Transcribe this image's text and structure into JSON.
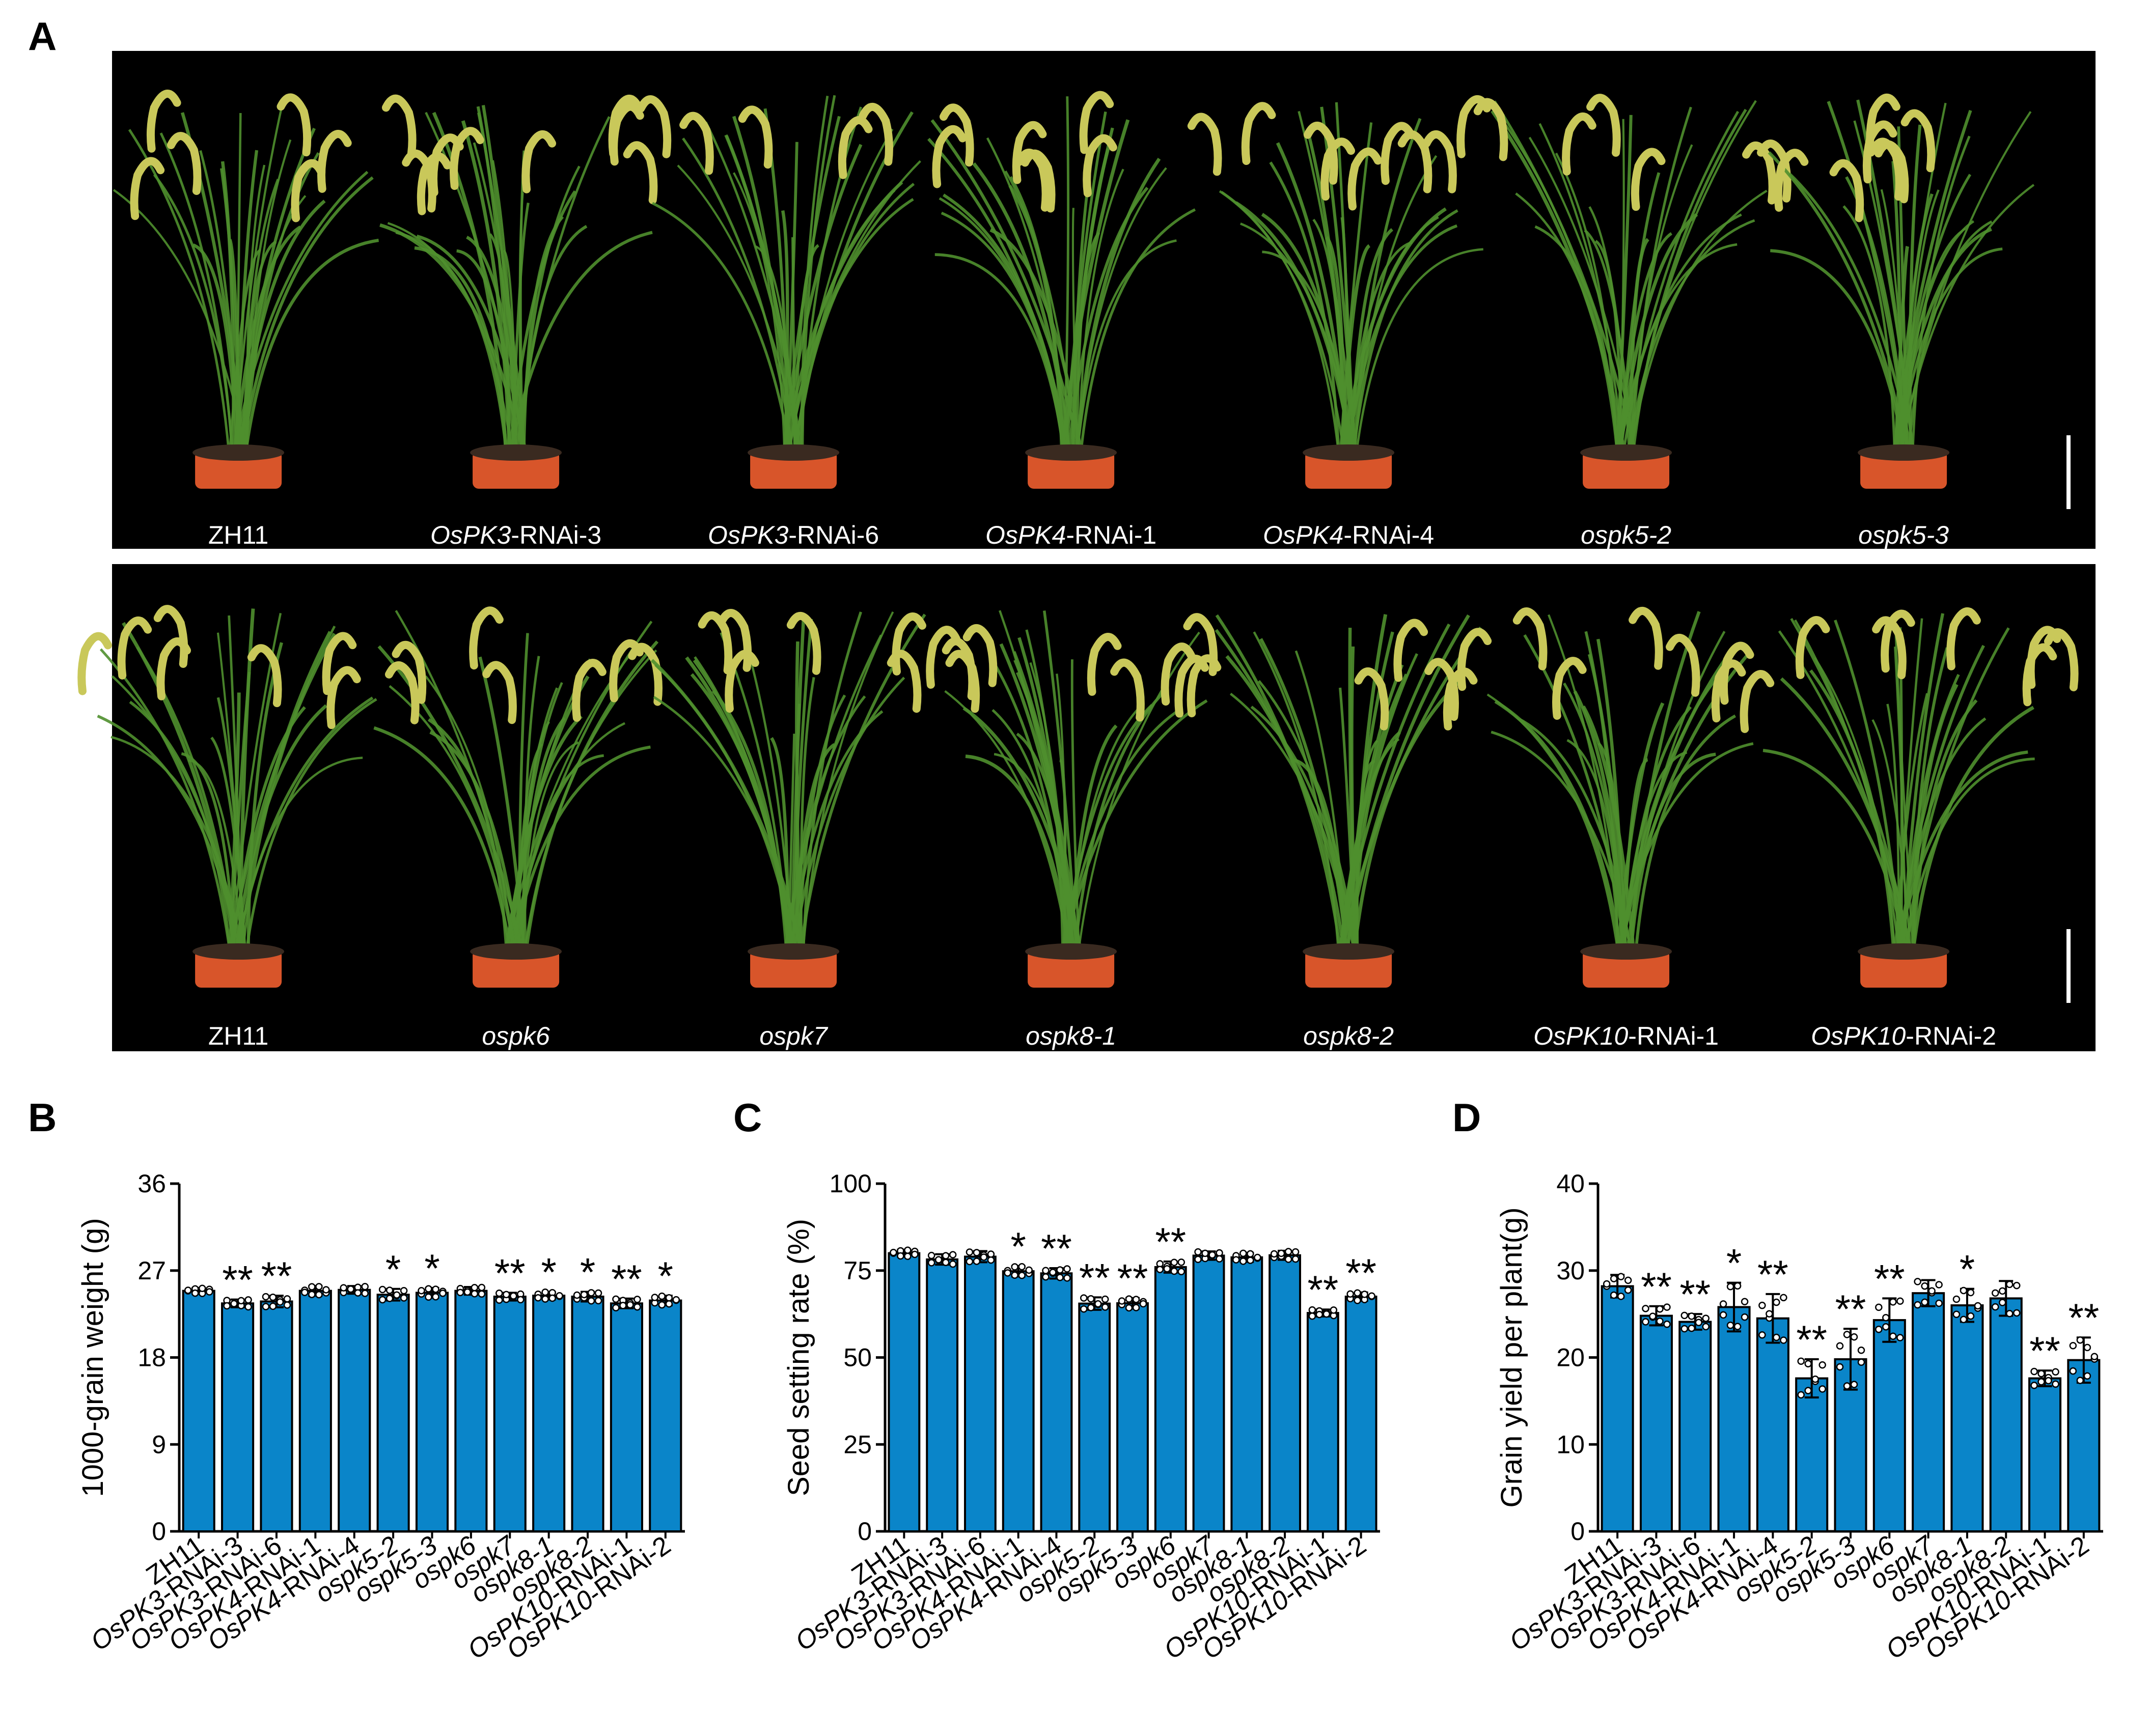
{
  "panel_letters": [
    "A",
    "B",
    "C",
    "D"
  ],
  "photos": {
    "row1_labels": [
      {
        "gene": "",
        "suffix": "ZH11"
      },
      {
        "gene": "OsPK3",
        "suffix": "-RNAi-3"
      },
      {
        "gene": "OsPK3",
        "suffix": "-RNAi-6"
      },
      {
        "gene": "OsPK4",
        "suffix": "-RNAi-1"
      },
      {
        "gene": "OsPK4",
        "suffix": "-RNAi-4"
      },
      {
        "gene": "ospk5-2",
        "suffix": ""
      },
      {
        "gene": "ospk5-3",
        "suffix": ""
      }
    ],
    "row2_labels": [
      {
        "gene": "",
        "suffix": "ZH11"
      },
      {
        "gene": "ospk6",
        "suffix": ""
      },
      {
        "gene": "ospk7",
        "suffix": ""
      },
      {
        "gene": "ospk8-1",
        "suffix": ""
      },
      {
        "gene": "ospk8-2",
        "suffix": ""
      },
      {
        "gene": "OsPK10",
        "suffix": "-RNAi-1"
      },
      {
        "gene": "OsPK10",
        "suffix": "-RNAi-2"
      }
    ]
  },
  "colors": {
    "bar_fill": "#0a85c9",
    "bar_stroke": "#000000",
    "photo_bg": "#000000",
    "leaf": "#4f8f2e",
    "panicle": "#c9c85a",
    "pot": "#d8552a",
    "soil": "#3a2a20"
  },
  "categories": [
    {
      "gene": "",
      "suffix": "ZH11"
    },
    {
      "gene": "OsPK3",
      "suffix": "-RNAi-3"
    },
    {
      "gene": "OsPK3",
      "suffix": "-RNAi-6"
    },
    {
      "gene": "OsPK4",
      "suffix": "-RNAi-1"
    },
    {
      "gene": "OsPK4",
      "suffix": "-RNAi-4"
    },
    {
      "gene": "ospk5-2",
      "suffix": ""
    },
    {
      "gene": "ospk5-3",
      "suffix": ""
    },
    {
      "gene": "ospk6",
      "suffix": ""
    },
    {
      "gene": "ospk7",
      "suffix": ""
    },
    {
      "gene": "ospk8-1",
      "suffix": ""
    },
    {
      "gene": "ospk8-2",
      "suffix": ""
    },
    {
      "gene": "OsPK10",
      "suffix": "-RNAi-1"
    },
    {
      "gene": "OsPK10",
      "suffix": "-RNAi-2"
    }
  ],
  "chart_data": [
    {
      "panel": "B",
      "type": "bar",
      "ylabel": "1000-grain weight (g)",
      "ylim": [
        0,
        36
      ],
      "yticks": [
        "0",
        "9",
        "18",
        "27",
        "36"
      ],
      "values": [
        24.9,
        23.6,
        23.8,
        24.9,
        25.0,
        24.5,
        24.7,
        24.9,
        24.3,
        24.4,
        24.3,
        23.6,
        23.9
      ],
      "errors": [
        0.3,
        0.4,
        0.6,
        0.5,
        0.4,
        0.6,
        0.5,
        0.4,
        0.4,
        0.4,
        0.5,
        0.5,
        0.5
      ],
      "significance": [
        "",
        "**",
        "**",
        "",
        "",
        "*",
        "*",
        "",
        "**",
        "*",
        "*",
        "**",
        "*"
      ]
    },
    {
      "panel": "C",
      "type": "bar",
      "ylabel": "Seed setting rate (%)",
      "ylim": [
        0,
        100
      ],
      "yticks": [
        "0",
        "25",
        "50",
        "75",
        "100"
      ],
      "values": [
        80.0,
        78.2,
        79.0,
        74.8,
        74.2,
        65.5,
        65.6,
        76.0,
        79.3,
        78.8,
        79.4,
        62.8,
        67.5
      ],
      "errors": [
        1.0,
        1.5,
        1.6,
        1.5,
        1.5,
        1.8,
        1.5,
        1.6,
        1.2,
        1.3,
        1.3,
        1.0,
        1.2
      ],
      "significance": [
        "",
        "",
        "",
        "*",
        "**",
        "**",
        "**",
        "**",
        "",
        "",
        "",
        "**",
        "**"
      ]
    },
    {
      "panel": "D",
      "type": "bar",
      "ylabel": "Grain yield per plant(g)",
      "ylim": [
        0,
        40
      ],
      "yticks": [
        "0",
        "10",
        "20",
        "30",
        "40"
      ],
      "values": [
        28.2,
        24.8,
        24.1,
        25.8,
        24.5,
        17.6,
        19.8,
        24.3,
        27.4,
        26.0,
        26.8,
        17.6,
        19.7
      ],
      "errors": [
        1.3,
        1.1,
        0.9,
        2.8,
        2.8,
        2.2,
        3.5,
        2.5,
        1.5,
        1.9,
        2.0,
        0.9,
        2.6
      ],
      "significance": [
        "",
        "**",
        "**",
        "*",
        "**",
        "**",
        "**",
        "**",
        "",
        "*",
        "",
        "**",
        "**"
      ]
    }
  ]
}
